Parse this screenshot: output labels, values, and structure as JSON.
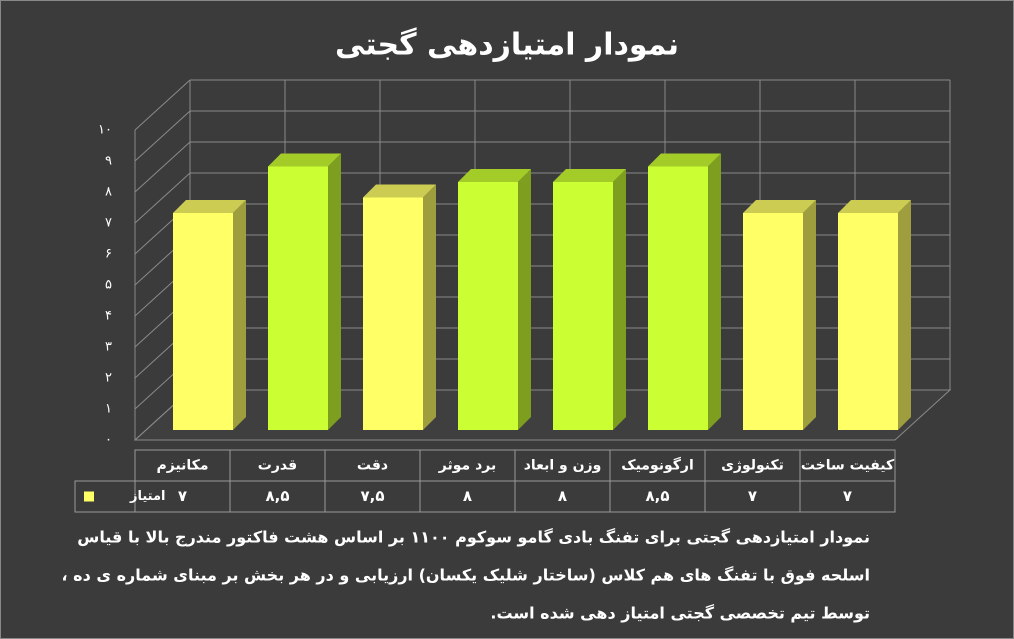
{
  "chart_data": {
    "type": "bar3d",
    "title": "نمودار امتیازدهی گجتی",
    "categories": [
      "مکانیزم",
      "قدرت",
      "دقت",
      "برد موثر",
      "وزن و ابعاد",
      "ارگونومیک",
      "تکنولوژی",
      "کیفیت ساخت"
    ],
    "series": [
      {
        "name": "امتیاز",
        "color": "#ffff66",
        "point_colors": [
          "#ffff66",
          "#ccff33",
          "#ffff66",
          "#ccff33",
          "#ccff33",
          "#ccff33",
          "#ffff66",
          "#ffff66"
        ],
        "values": [
          7,
          8.5,
          7.5,
          8,
          8,
          8.5,
          7,
          7
        ],
        "value_labels": [
          "۷",
          "۸,۵",
          "۷,۵",
          "۸",
          "۸",
          "۸,۵",
          "۷",
          "۷"
        ]
      }
    ],
    "ylim": [
      0,
      10
    ],
    "yticks": [
      {
        "value": 0,
        "label": "۰"
      },
      {
        "value": 1,
        "label": "۱"
      },
      {
        "value": 2,
        "label": "۲"
      },
      {
        "value": 3,
        "label": "۳"
      },
      {
        "value": 4,
        "label": "۴"
      },
      {
        "value": 5,
        "label": "۵"
      },
      {
        "value": 6,
        "label": "۶"
      },
      {
        "value": 7,
        "label": "۷"
      },
      {
        "value": 8,
        "label": "۸"
      },
      {
        "value": 9,
        "label": "۹"
      },
      {
        "value": 10,
        "label": "۱۰"
      }
    ],
    "grid": true,
    "caption": [
      "نمودار امتیازدهی گجتی برای تفنگ بادی گامو سوکوم ۱۱۰۰ بر اساس هشت فاکتور مندرج بالا با قیاس",
      "اسلحه فوق با تفنگ های هم کلاس (ساختار شلیک یکسان) ارزیابی و در هر بخش بر مبنای شماره ی ده ،",
      "توسط تیم تخصصی گجتی امتیاز دهی شده است."
    ]
  }
}
